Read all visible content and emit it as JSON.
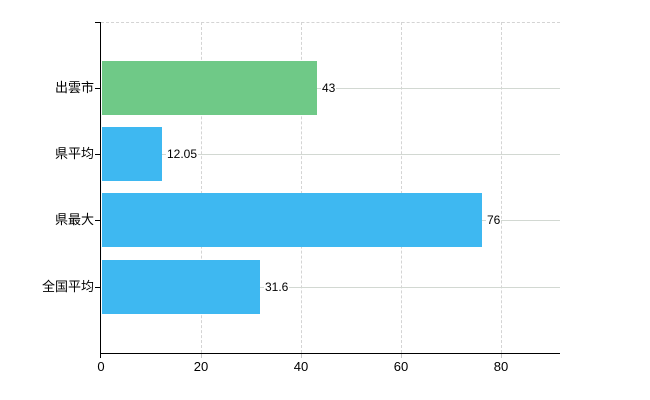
{
  "chart_data": {
    "type": "bar",
    "orientation": "horizontal",
    "title": "",
    "xlabel": "",
    "ylabel": "",
    "categories": [
      "出雲市",
      "県平均",
      "県最大",
      "全国平均"
    ],
    "values": [
      43,
      12.05,
      76,
      31.6
    ],
    "value_labels": [
      "43",
      "12.05",
      "76",
      "31.6"
    ],
    "bar_colors": [
      "#6fc987",
      "#3eb8f1",
      "#3eb8f1",
      "#3eb8f1"
    ],
    "xlim": [
      0,
      91.8
    ],
    "x_ticks": [
      0,
      20,
      40,
      60,
      80
    ],
    "x_tick_labels": [
      "0",
      "20",
      "40",
      "60",
      "80"
    ],
    "legend": "none",
    "grid": {
      "vertical_style": "dashed",
      "horizontal_style": "solid",
      "color": "#d4d4d4"
    },
    "background": "#ffffff",
    "axis_color": "#000000"
  }
}
